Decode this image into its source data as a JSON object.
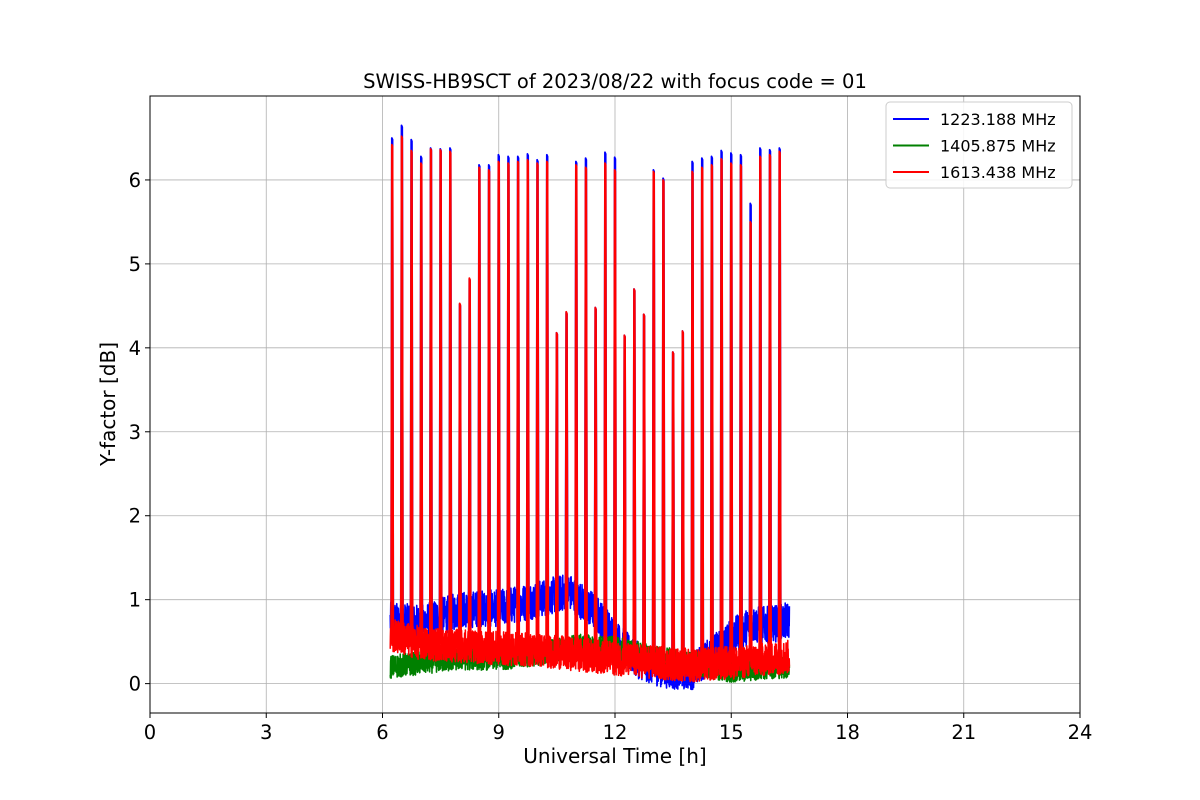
{
  "chart_data": {
    "type": "line",
    "title": "SWISS-HB9SCT of 2023/08/22 with focus code = 01",
    "xlabel": "Universal Time [h]",
    "ylabel": "Y-factor [dB]",
    "xlim": [
      0,
      24
    ],
    "ylim": [
      -0.35,
      7.0
    ],
    "xticks": [
      "0",
      "3",
      "6",
      "9",
      "12",
      "15",
      "18",
      "21",
      "24"
    ],
    "yticks": [
      "0",
      "1",
      "2",
      "3",
      "4",
      "5",
      "6"
    ],
    "grid": true,
    "legend_position": "top-right",
    "data_range_hours": [
      6.2,
      16.5
    ],
    "series": [
      {
        "name": "1223.188 MHz",
        "color": "#0000ff",
        "baseline": [
          [
            6.2,
            0.75
          ],
          [
            7.0,
            0.72
          ],
          [
            8.0,
            0.88
          ],
          [
            9.0,
            0.9
          ],
          [
            10.0,
            1.0
          ],
          [
            10.8,
            1.1
          ],
          [
            11.5,
            0.85
          ],
          [
            12.0,
            0.55
          ],
          [
            12.5,
            0.3
          ],
          [
            13.0,
            0.2
          ],
          [
            13.5,
            0.15
          ],
          [
            14.0,
            0.15
          ],
          [
            14.5,
            0.35
          ],
          [
            15.0,
            0.55
          ],
          [
            15.5,
            0.7
          ],
          [
            16.0,
            0.7
          ],
          [
            16.5,
            0.75
          ]
        ],
        "noise": 0.22,
        "peaks": [
          [
            6.25,
            6.5
          ],
          [
            6.5,
            6.65
          ],
          [
            6.75,
            6.48
          ],
          [
            7.0,
            6.28
          ],
          [
            7.25,
            6.38
          ],
          [
            7.5,
            6.37
          ],
          [
            7.75,
            6.38
          ],
          [
            8.0,
            4.52
          ],
          [
            8.25,
            4.82
          ],
          [
            8.5,
            6.18
          ],
          [
            8.75,
            6.18
          ],
          [
            9.0,
            6.3
          ],
          [
            9.25,
            6.28
          ],
          [
            9.5,
            6.28
          ],
          [
            9.75,
            6.31
          ],
          [
            10.0,
            6.24
          ],
          [
            10.25,
            6.3
          ],
          [
            10.5,
            4.18
          ],
          [
            10.75,
            4.42
          ],
          [
            11.0,
            6.22
          ],
          [
            11.25,
            6.26
          ],
          [
            11.5,
            4.48
          ],
          [
            11.75,
            6.33
          ],
          [
            12.0,
            6.27
          ],
          [
            12.25,
            4.15
          ],
          [
            12.5,
            4.7
          ],
          [
            12.75,
            4.4
          ],
          [
            13.0,
            6.12
          ],
          [
            13.25,
            6.02
          ],
          [
            13.5,
            3.95
          ],
          [
            13.75,
            4.2
          ],
          [
            14.0,
            6.22
          ],
          [
            14.25,
            6.26
          ],
          [
            14.5,
            6.28
          ],
          [
            14.75,
            6.35
          ],
          [
            15.0,
            6.32
          ],
          [
            15.25,
            6.3
          ],
          [
            15.5,
            5.72
          ],
          [
            15.75,
            6.38
          ],
          [
            16.0,
            6.36
          ],
          [
            16.25,
            6.38
          ]
        ]
      },
      {
        "name": "1405.875 MHz",
        "color": "#008000",
        "baseline": [
          [
            6.2,
            0.2
          ],
          [
            7.0,
            0.25
          ],
          [
            8.0,
            0.3
          ],
          [
            9.0,
            0.3
          ],
          [
            10.0,
            0.35
          ],
          [
            11.0,
            0.45
          ],
          [
            12.0,
            0.42
          ],
          [
            13.0,
            0.32
          ],
          [
            14.0,
            0.25
          ],
          [
            15.0,
            0.15
          ],
          [
            16.0,
            0.2
          ],
          [
            16.5,
            0.2
          ]
        ],
        "noise": 0.14,
        "peaks": []
      },
      {
        "name": "1613.438 MHz",
        "color": "#ff0000",
        "baseline": [
          [
            6.2,
            0.58
          ],
          [
            7.0,
            0.48
          ],
          [
            8.0,
            0.45
          ],
          [
            9.0,
            0.42
          ],
          [
            10.0,
            0.4
          ],
          [
            11.0,
            0.35
          ],
          [
            12.0,
            0.3
          ],
          [
            13.0,
            0.25
          ],
          [
            14.0,
            0.22
          ],
          [
            15.0,
            0.25
          ],
          [
            16.0,
            0.3
          ],
          [
            16.5,
            0.32
          ]
        ],
        "noise": 0.2,
        "peaks": [
          [
            6.25,
            6.42
          ],
          [
            6.5,
            6.52
          ],
          [
            6.75,
            6.35
          ],
          [
            7.0,
            6.2
          ],
          [
            7.25,
            6.37
          ],
          [
            7.5,
            6.36
          ],
          [
            7.75,
            6.34
          ],
          [
            8.0,
            4.53
          ],
          [
            8.25,
            4.83
          ],
          [
            8.5,
            6.15
          ],
          [
            8.75,
            6.12
          ],
          [
            9.0,
            6.22
          ],
          [
            9.25,
            6.2
          ],
          [
            9.5,
            6.22
          ],
          [
            9.75,
            6.24
          ],
          [
            10.0,
            6.2
          ],
          [
            10.25,
            6.22
          ],
          [
            10.5,
            4.18
          ],
          [
            10.75,
            4.43
          ],
          [
            11.0,
            6.18
          ],
          [
            11.25,
            6.15
          ],
          [
            11.5,
            4.48
          ],
          [
            11.75,
            6.2
          ],
          [
            12.0,
            6.12
          ],
          [
            12.25,
            4.15
          ],
          [
            12.5,
            4.7
          ],
          [
            12.75,
            4.4
          ],
          [
            13.0,
            6.1
          ],
          [
            13.25,
            6.0
          ],
          [
            13.5,
            3.95
          ],
          [
            13.75,
            4.2
          ],
          [
            14.0,
            6.1
          ],
          [
            14.25,
            6.15
          ],
          [
            14.5,
            6.18
          ],
          [
            14.75,
            6.25
          ],
          [
            15.0,
            6.2
          ],
          [
            15.25,
            6.18
          ],
          [
            15.5,
            5.5
          ],
          [
            15.75,
            6.28
          ],
          [
            16.0,
            6.3
          ],
          [
            16.25,
            6.34
          ]
        ]
      }
    ]
  }
}
